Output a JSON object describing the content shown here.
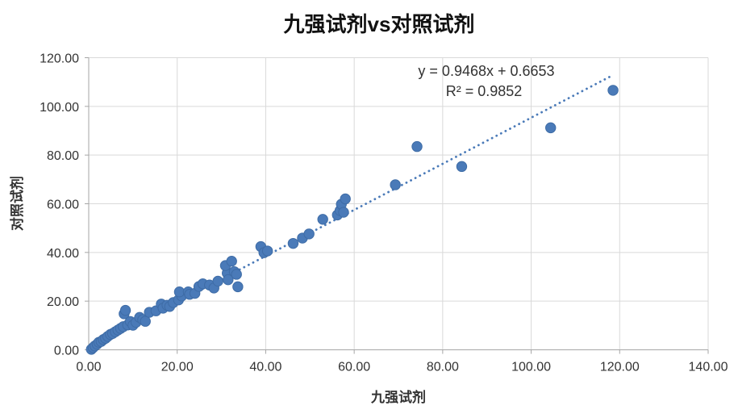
{
  "chart_data": {
    "type": "scatter",
    "title": "九强试剂vs对照试剂",
    "xlabel": "九强试剂",
    "ylabel": "对照试剂",
    "xlim": [
      0,
      140
    ],
    "ylim": [
      0,
      120
    ],
    "x_ticks": [
      "0.00",
      "20.00",
      "40.00",
      "60.00",
      "80.00",
      "100.00",
      "120.00",
      "140.00"
    ],
    "y_ticks": [
      "0.00",
      "20.00",
      "40.00",
      "60.00",
      "80.00",
      "100.00",
      "120.00"
    ],
    "grid": true,
    "legend_position": "none",
    "points": [
      [
        0.6,
        0.2
      ],
      [
        1.0,
        0.9
      ],
      [
        1.4,
        1.6
      ],
      [
        1.9,
        2.3
      ],
      [
        2.3,
        3.1
      ],
      [
        2.8,
        3.4
      ],
      [
        3.3,
        4.2
      ],
      [
        3.8,
        4.7
      ],
      [
        4.3,
        5.5
      ],
      [
        4.9,
        6.3
      ],
      [
        5.4,
        6.7
      ],
      [
        6.0,
        7.4
      ],
      [
        6.6,
        8.1
      ],
      [
        7.2,
        8.8
      ],
      [
        7.8,
        9.5
      ],
      [
        8.0,
        14.8
      ],
      [
        8.3,
        16.2
      ],
      [
        8.8,
        10.2
      ],
      [
        9.4,
        11.6
      ],
      [
        10.0,
        10.1
      ],
      [
        10.7,
        11.3
      ],
      [
        11.5,
        13.3
      ],
      [
        12.2,
        12.4
      ],
      [
        12.8,
        11.7
      ],
      [
        13.7,
        15.4
      ],
      [
        15.2,
        16.0
      ],
      [
        16.4,
        18.8
      ],
      [
        16.8,
        17.1
      ],
      [
        17.7,
        18.3
      ],
      [
        18.3,
        17.8
      ],
      [
        19.1,
        19.4
      ],
      [
        20.3,
        20.5
      ],
      [
        21.0,
        22.1
      ],
      [
        20.5,
        23.8
      ],
      [
        22.5,
        23.8
      ],
      [
        22.8,
        22.8
      ],
      [
        24.0,
        23.2
      ],
      [
        24.9,
        26.0
      ],
      [
        25.8,
        27.1
      ],
      [
        27.3,
        26.6
      ],
      [
        28.3,
        25.4
      ],
      [
        29.2,
        28.2
      ],
      [
        31.3,
        31.5
      ],
      [
        30.9,
        34.6
      ],
      [
        31.5,
        28.8
      ],
      [
        32.3,
        36.4
      ],
      [
        32.9,
        32.1
      ],
      [
        33.4,
        31.0
      ],
      [
        33.7,
        25.9
      ],
      [
        38.9,
        42.4
      ],
      [
        39.6,
        39.9
      ],
      [
        40.4,
        40.6
      ],
      [
        46.2,
        43.7
      ],
      [
        48.3,
        45.9
      ],
      [
        49.8,
        47.6
      ],
      [
        52.9,
        53.6
      ],
      [
        56.2,
        55.4
      ],
      [
        56.8,
        57.2
      ],
      [
        57.1,
        59.8
      ],
      [
        57.6,
        56.5
      ],
      [
        58.0,
        62.0
      ],
      [
        69.3,
        67.8
      ],
      [
        74.2,
        83.5
      ],
      [
        84.3,
        75.3
      ],
      [
        104.4,
        91.2
      ],
      [
        118.5,
        106.6
      ]
    ],
    "trendline": {
      "type": "linear",
      "slope": 0.9468,
      "intercept": 0.6653,
      "x_start": 0.5,
      "x_end": 118.5,
      "style": "dotted",
      "equation": "y = 0.9468x + 0.6653",
      "r_squared": "R² = 0.9852"
    },
    "colors": {
      "marker": "#4a7ab8",
      "marker_edge": "#3e6ca6",
      "trendline": "#4a7ab8",
      "gridline": "#d9d9d9",
      "axis": "#a6a6a6",
      "tick_text": "#333333",
      "title_text": "#111111"
    }
  }
}
